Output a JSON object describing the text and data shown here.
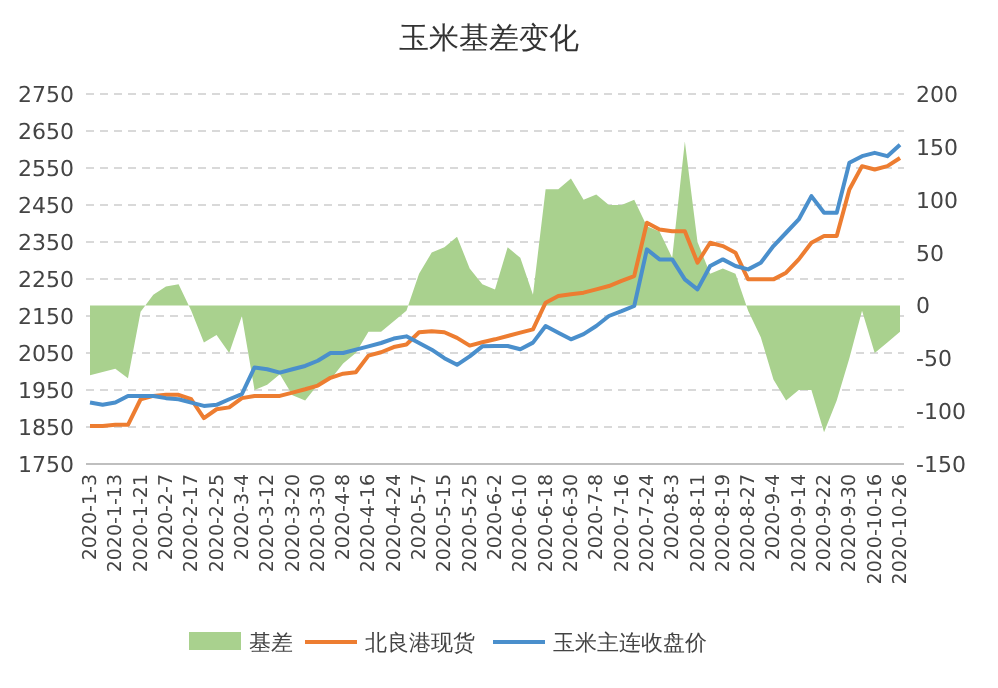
{
  "chart_data": {
    "type": "line",
    "title": "玉米基差变化",
    "categories": [
      "2020-1-3",
      null,
      "2020-1-13",
      null,
      "2020-1-21",
      null,
      "2020-2-7",
      null,
      "2020-2-17",
      null,
      "2020-2-25",
      null,
      "2020-3-4",
      null,
      "2020-3-12",
      null,
      "2020-3-20",
      null,
      "2020-3-30",
      null,
      "2020-4-8",
      null,
      "2020-4-16",
      null,
      "2020-4-24",
      null,
      "2020-5-7",
      null,
      "2020-5-15",
      null,
      "2020-5-25",
      null,
      "2020-6-2",
      null,
      "2020-6-10",
      null,
      "2020-6-18",
      null,
      "2020-6-30",
      null,
      "2020-7-8",
      null,
      "2020-7-16",
      null,
      "2020-7-24",
      null,
      "2020-8-3",
      null,
      "2020-8-11",
      null,
      "2020-8-19",
      null,
      "2020-8-27",
      null,
      "2020-9-4",
      null,
      "2020-9-14",
      null,
      "2020-9-22",
      null,
      "2020-9-30",
      null,
      "2020-10-16",
      null,
      "2020-10-26"
    ],
    "series": [
      {
        "name": "基差",
        "type": "area",
        "axis": "y2",
        "color": "#a9d18e",
        "values": [
          -66,
          -63,
          -60,
          -69,
          -6,
          10,
          18,
          20,
          -5,
          -35,
          -28,
          -45,
          -10,
          -80,
          -75,
          -65,
          -85,
          -90,
          -75,
          -70,
          -55,
          -45,
          -25,
          -25,
          -15,
          -5,
          30,
          50,
          55,
          65,
          35,
          20,
          15,
          55,
          45,
          10,
          110,
          110,
          120,
          100,
          105,
          95,
          95,
          100,
          75,
          70,
          45,
          155,
          60,
          30,
          35,
          30,
          -5,
          -30,
          -70,
          -90,
          -80,
          -80,
          -120,
          -90,
          -50,
          -5,
          -45,
          -35,
          -25
        ]
      },
      {
        "name": "北良港现货",
        "type": "line",
        "color": "#ed7d31",
        "values": [
          1853,
          1853,
          1856,
          1856,
          1925,
          1934,
          1937,
          1937,
          1925,
          1874,
          1898,
          1903,
          1928,
          1934,
          1934,
          1934,
          1943,
          1952,
          1962,
          1983,
          1994,
          1998,
          2043,
          2052,
          2066,
          2073,
          2106,
          2109,
          2106,
          2091,
          2070,
          2079,
          2087,
          2096,
          2105,
          2114,
          2186,
          2204,
          2209,
          2213,
          2222,
          2231,
          2245,
          2258,
          2402,
          2384,
          2379,
          2379,
          2294,
          2348,
          2339,
          2321,
          2249,
          2249,
          2249,
          2267,
          2303,
          2348,
          2366,
          2366,
          2492,
          2555,
          2546,
          2555,
          2577
        ]
      },
      {
        "name": "玉米主连收盘价",
        "type": "line",
        "color": "#4a8fcc",
        "values": [
          1916,
          1910,
          1916,
          1934,
          1934,
          1934,
          1928,
          1925,
          1916,
          1907,
          1910,
          1925,
          1939,
          2011,
          2006,
          1997,
          2006,
          2015,
          2029,
          2050,
          2050,
          2059,
          2068,
          2077,
          2089,
          2095,
          2077,
          2059,
          2036,
          2018,
          2041,
          2068,
          2069,
          2069,
          2060,
          2078,
          2123,
          2105,
          2087,
          2101,
          2123,
          2150,
          2163,
          2177,
          2330,
          2303,
          2303,
          2249,
          2222,
          2285,
          2303,
          2285,
          2276,
          2294,
          2339,
          2375,
          2411,
          2474,
          2429,
          2429,
          2564,
          2582,
          2591,
          2582,
          2613
        ]
      }
    ],
    "ylim": [
      1750,
      2750
    ],
    "yticks": [
      1750,
      1850,
      1950,
      2050,
      2150,
      2250,
      2350,
      2450,
      2550,
      2650,
      2750
    ],
    "y2lim": [
      -150,
      200
    ],
    "y2ticks": [
      -150,
      -100,
      -50,
      0,
      50,
      100,
      150,
      200
    ],
    "grid": "y",
    "legend": "bottom",
    "marker": "none",
    "line_style": "solid"
  }
}
